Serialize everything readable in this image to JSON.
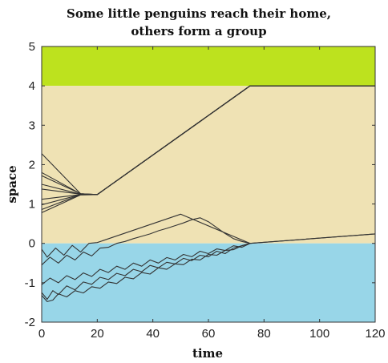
{
  "chart_data": {
    "type": "line",
    "title_lines": [
      "Some little penguins reach their home,",
      "others form a group"
    ],
    "xlabel": "time",
    "ylabel": "space",
    "xlim": [
      0,
      120
    ],
    "ylim": [
      -2,
      5
    ],
    "xticks": [
      0,
      20,
      40,
      60,
      80,
      100,
      120
    ],
    "yticks": [
      -2,
      -1,
      0,
      1,
      2,
      3,
      4,
      5
    ],
    "grid": false,
    "bands": [
      {
        "region": "home",
        "from": 4,
        "to": 5,
        "color": "#bde21e"
      },
      {
        "region": "land",
        "from": 0,
        "to": 4,
        "color": "#efe2b4"
      },
      {
        "region": "sea",
        "from": -2,
        "to": 0,
        "color": "#98d6e8"
      }
    ],
    "line_color": "#333333",
    "series": [
      {
        "x": [
          0,
          14,
          20,
          75,
          120
        ],
        "y": [
          2.28,
          1.26,
          1.24,
          4.0,
          4.0
        ]
      },
      {
        "x": [
          0,
          14,
          20,
          75,
          120
        ],
        "y": [
          1.8,
          1.26,
          1.24,
          4.0,
          4.0
        ]
      },
      {
        "x": [
          0,
          14,
          20,
          75,
          120
        ],
        "y": [
          1.72,
          1.26,
          1.24,
          4.0,
          4.0
        ]
      },
      {
        "x": [
          0,
          14,
          20,
          75,
          120
        ],
        "y": [
          1.5,
          1.25,
          1.24,
          4.0,
          4.0
        ]
      },
      {
        "x": [
          0,
          14,
          20,
          75,
          120
        ],
        "y": [
          1.38,
          1.25,
          1.24,
          4.0,
          4.0
        ]
      },
      {
        "x": [
          0,
          14,
          20,
          75,
          120
        ],
        "y": [
          1.12,
          1.24,
          1.24,
          4.0,
          4.0
        ]
      },
      {
        "x": [
          0,
          14,
          20,
          75,
          120
        ],
        "y": [
          0.98,
          1.24,
          1.24,
          4.0,
          4.0
        ]
      },
      {
        "x": [
          0,
          14,
          20,
          75,
          120
        ],
        "y": [
          0.86,
          1.24,
          1.24,
          4.0,
          4.0
        ]
      },
      {
        "x": [
          0,
          14,
          20,
          75,
          120
        ],
        "y": [
          0.78,
          1.23,
          1.24,
          4.0,
          4.0
        ]
      },
      {
        "x": [
          0,
          2,
          5,
          8,
          11,
          14,
          17,
          20,
          50,
          75,
          120
        ],
        "y": [
          -0.15,
          -0.35,
          -0.12,
          -0.3,
          -0.05,
          -0.22,
          0.0,
          0.02,
          0.74,
          0.0,
          0.24
        ]
      },
      {
        "x": [
          0,
          3,
          6,
          9,
          12,
          15,
          18,
          21,
          24,
          27,
          30,
          33,
          36,
          39,
          42,
          45,
          48,
          51,
          54,
          57,
          60,
          63,
          66,
          69,
          72,
          75,
          120
        ],
        "y": [
          -0.55,
          -0.35,
          -0.5,
          -0.3,
          -0.42,
          -0.22,
          -0.32,
          -0.12,
          -0.1,
          0.0,
          0.05,
          0.12,
          0.18,
          0.24,
          0.32,
          0.38,
          0.45,
          0.52,
          0.6,
          0.65,
          0.55,
          0.4,
          0.25,
          0.12,
          0.05,
          0.0,
          0.24
        ]
      },
      {
        "x": [
          0,
          3,
          6,
          9,
          12,
          15,
          18,
          21,
          24,
          27,
          30,
          33,
          36,
          39,
          42,
          45,
          48,
          51,
          54,
          57,
          60,
          63,
          66,
          69,
          72,
          75
        ],
        "y": [
          -1.05,
          -0.88,
          -1.0,
          -0.82,
          -0.92,
          -0.75,
          -0.84,
          -0.66,
          -0.74,
          -0.58,
          -0.66,
          -0.5,
          -0.58,
          -0.42,
          -0.5,
          -0.36,
          -0.42,
          -0.28,
          -0.34,
          -0.2,
          -0.26,
          -0.14,
          -0.18,
          -0.06,
          -0.1,
          0.0
        ]
      },
      {
        "x": [
          0,
          2,
          4,
          6,
          9,
          12,
          15,
          18,
          21,
          24,
          27,
          30,
          33,
          36,
          39,
          42,
          45,
          48,
          51,
          54,
          57,
          60,
          63,
          66,
          69,
          72,
          75
        ],
        "y": [
          -1.25,
          -1.42,
          -1.2,
          -1.3,
          -1.08,
          -1.18,
          -0.98,
          -1.04,
          -0.86,
          -0.92,
          -0.76,
          -0.82,
          -0.66,
          -0.72,
          -0.56,
          -0.62,
          -0.48,
          -0.52,
          -0.38,
          -0.44,
          -0.3,
          -0.34,
          -0.2,
          -0.26,
          -0.12,
          -0.06,
          0.0
        ]
      },
      {
        "x": [
          0,
          2,
          4,
          6,
          9,
          12,
          15,
          18,
          21,
          24,
          27,
          30,
          33,
          36,
          39,
          42,
          45,
          48,
          51,
          54,
          57,
          60,
          63,
          66,
          69,
          72,
          75
        ],
        "y": [
          -1.32,
          -1.48,
          -1.44,
          -1.28,
          -1.36,
          -1.2,
          -1.26,
          -1.1,
          -1.14,
          -0.98,
          -1.02,
          -0.86,
          -0.9,
          -0.74,
          -0.78,
          -0.62,
          -0.66,
          -0.52,
          -0.54,
          -0.4,
          -0.42,
          -0.28,
          -0.3,
          -0.18,
          -0.16,
          -0.06,
          0.0
        ]
      }
    ]
  }
}
